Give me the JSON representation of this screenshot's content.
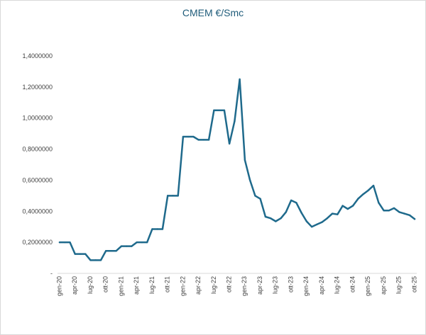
{
  "chart_data": {
    "type": "line",
    "title": "CMEM €/Smc",
    "xlabel": "",
    "ylabel": "",
    "ylim": [
      0,
      1.4
    ],
    "y_ticks": [
      0,
      0.2,
      0.4,
      0.6,
      0.8,
      1.0,
      1.2,
      1.4
    ],
    "y_tick_labels": [
      "-",
      "0,2000000",
      "0,4000000",
      "0,6000000",
      "0,8000000",
      "1,0000000",
      "1,2000000",
      "1,4000000"
    ],
    "x_tick_labels": [
      "gen-20",
      "apr-20",
      "lug-20",
      "ott-20",
      "gen-21",
      "apr-21",
      "lug-21",
      "ott-21",
      "gen-22",
      "apr-22",
      "lug-22",
      "ott-22",
      "gen-23",
      "apr-23",
      "lug-23",
      "ott-23",
      "gen-24",
      "apr-24",
      "lug-24",
      "ott-24",
      "gen-25",
      "apr-25",
      "lug-25",
      "ott-25"
    ],
    "grid": false,
    "line_color": "#1f6a8c",
    "series": [
      {
        "name": "CMEM €/Smc",
        "values": [
          0.2,
          0.2,
          0.2,
          0.125,
          0.125,
          0.125,
          0.085,
          0.085,
          0.085,
          0.145,
          0.145,
          0.145,
          0.175,
          0.175,
          0.175,
          0.2,
          0.2,
          0.2,
          0.285,
          0.285,
          0.285,
          0.5,
          0.5,
          0.5,
          0.88,
          0.88,
          0.88,
          0.86,
          0.86,
          0.86,
          1.05,
          1.05,
          1.05,
          0.835,
          0.98,
          1.25,
          0.73,
          0.6,
          0.5,
          0.48,
          0.365,
          0.355,
          0.335,
          0.355,
          0.395,
          0.47,
          0.455,
          0.39,
          0.335,
          0.3,
          0.315,
          0.33,
          0.355,
          0.385,
          0.38,
          0.435,
          0.415,
          0.435,
          0.48,
          0.51,
          0.535,
          0.565,
          0.455,
          0.405,
          0.405,
          0.42,
          0.395,
          0.385,
          0.375,
          0.35
        ]
      }
    ]
  }
}
